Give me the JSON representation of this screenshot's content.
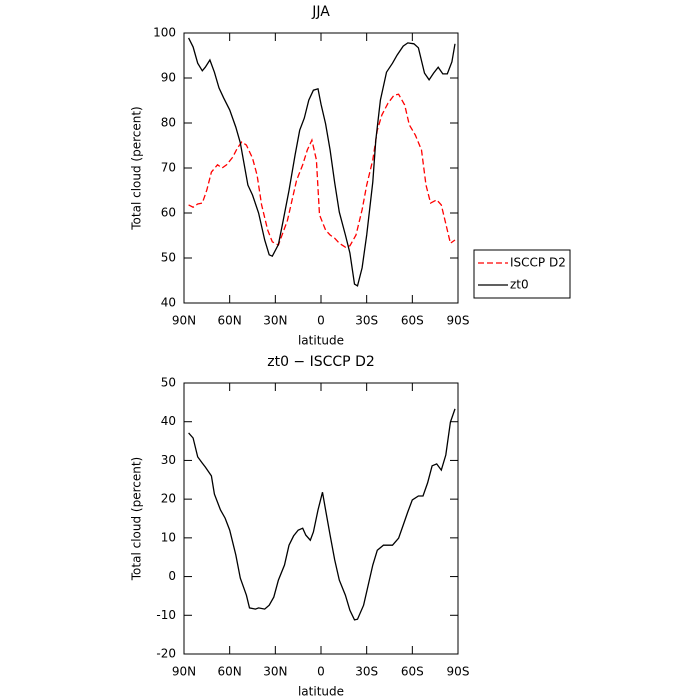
{
  "chart_data": [
    {
      "type": "line",
      "title": "JJA",
      "x_label": "latitude",
      "y_label": "Total cloud (percent)",
      "xlim": [
        90,
        -90
      ],
      "xticks": [
        {
          "value": 90,
          "label": "90N"
        },
        {
          "value": 60,
          "label": "60N"
        },
        {
          "value": 30,
          "label": "30N"
        },
        0,
        {
          "value": -30,
          "label": "30S"
        },
        {
          "value": -60,
          "label": "60S"
        },
        {
          "value": -90,
          "label": "90S"
        }
      ],
      "ylim": [
        40,
        100
      ],
      "yticks": [
        40,
        50,
        60,
        70,
        80,
        90,
        100
      ],
      "legend": "outside right",
      "series": [
        {
          "name": "ISCCP D2",
          "color": "#ff0000",
          "linestyle": "dashed",
          "x": [
            87,
            84,
            81,
            78,
            75,
            72,
            68,
            65,
            62,
            58,
            55,
            52,
            49,
            45,
            42,
            39,
            35,
            32,
            28,
            26,
            22,
            19,
            16,
            12,
            9,
            6,
            3,
            1,
            -3,
            -6,
            -9,
            -12,
            -16,
            -19,
            -23,
            -27,
            -30,
            -34,
            -37,
            -40,
            -44,
            -48,
            -51,
            -55,
            -58,
            -62,
            -66,
            -69,
            -72,
            -76,
            -79,
            -83,
            -85,
            -88
          ],
          "values": [
            61.8,
            61.3,
            62,
            62.2,
            65.1,
            69.1,
            70.7,
            70,
            70.7,
            72.4,
            74.4,
            75.8,
            75.1,
            72.2,
            68.4,
            61.8,
            56.2,
            53.6,
            52.9,
            54.7,
            58.4,
            62.9,
            67.3,
            70.7,
            74,
            76.2,
            71.8,
            59.6,
            56.2,
            55.1,
            54.4,
            53.3,
            52.4,
            52.7,
            55.1,
            60.7,
            66.2,
            71.8,
            78.4,
            81.8,
            84.4,
            86.2,
            86.4,
            84,
            79.6,
            77.3,
            74,
            66.2,
            62.2,
            62.9,
            61.8,
            56.2,
            53.3,
            54
          ]
        },
        {
          "name": "zt0",
          "color": "#000000",
          "linestyle": "solid",
          "x": [
            87,
            84,
            81,
            78,
            76,
            73,
            70,
            67,
            64,
            60,
            56,
            53,
            48,
            45,
            41,
            37,
            34,
            32,
            28,
            25,
            21,
            17,
            14,
            11,
            8,
            5,
            2,
            0,
            -3,
            -6,
            -9,
            -12,
            -16,
            -19,
            -22,
            -24,
            -27,
            -30,
            -34,
            -36,
            -39,
            -43,
            -47,
            -50,
            -54,
            -57,
            -61,
            -64,
            -68,
            -71,
            -74,
            -77,
            -80,
            -83,
            -86,
            -88
          ],
          "values": [
            98.9,
            96.9,
            93.3,
            91.6,
            92.4,
            94,
            91.3,
            87.8,
            85.6,
            82.9,
            79.1,
            75.6,
            66.2,
            64,
            60,
            54,
            50.7,
            50.4,
            53,
            58,
            65,
            72.9,
            78.4,
            81.1,
            85.1,
            87.3,
            87.6,
            84.2,
            79.8,
            74,
            66.7,
            60.2,
            55.1,
            51.1,
            44.2,
            43.8,
            47.8,
            55.1,
            66.9,
            76.2,
            85.1,
            91.3,
            93.3,
            95.1,
            97.1,
            97.8,
            97.6,
            96.7,
            91.1,
            89.6,
            91.1,
            92.4,
            90.9,
            90.9,
            93.6,
            97.6
          ]
        }
      ]
    },
    {
      "type": "line",
      "title": "zt0 − ISCCP D2",
      "x_label": "latitude",
      "y_label": "Total cloud (percent)",
      "xlim": [
        90,
        -90
      ],
      "xticks": [
        {
          "value": 90,
          "label": "90N"
        },
        {
          "value": 60,
          "label": "60N"
        },
        {
          "value": 30,
          "label": "30N"
        },
        0,
        {
          "value": -30,
          "label": "30S"
        },
        {
          "value": -60,
          "label": "60S"
        },
        {
          "value": -90,
          "label": "90S"
        }
      ],
      "ylim": [
        -20,
        50
      ],
      "yticks": [
        -20,
        -10,
        0,
        10,
        20,
        30,
        40,
        50
      ],
      "series": [
        {
          "color": "#000000",
          "linestyle": "solid",
          "x": [
            87,
            84,
            81,
            78,
            76,
            72,
            70,
            66,
            63,
            60,
            56,
            53,
            49,
            47,
            43,
            41,
            37,
            34,
            31,
            28,
            24,
            21,
            18,
            15,
            12,
            10,
            7,
            5,
            2,
            -1,
            -3,
            -6,
            -9,
            -12,
            -16,
            -19,
            -22,
            -24,
            -28,
            -31,
            -34,
            -37,
            -41,
            -44,
            -47,
            -51,
            -54,
            -57,
            -60,
            -64,
            -67,
            -70,
            -73,
            -76,
            -79,
            -82,
            -85,
            -88
          ],
          "values": [
            37.1,
            35.8,
            30.9,
            29.3,
            28.3,
            26,
            21.3,
            17.2,
            15.1,
            12,
            5.6,
            -0.4,
            -4.8,
            -8.1,
            -8.4,
            -8.1,
            -8.4,
            -7.4,
            -5.3,
            -0.9,
            3,
            8.1,
            10.5,
            12,
            12.5,
            10.7,
            9.4,
            11.5,
            17.2,
            21.8,
            17.2,
            10.7,
            4.3,
            -0.9,
            -4.8,
            -8.7,
            -11.2,
            -11,
            -7.4,
            -2.2,
            3,
            6.8,
            8.1,
            8.1,
            8.1,
            9.9,
            13.3,
            16.7,
            19.8,
            20.8,
            20.8,
            24.2,
            28.6,
            29.1,
            27.5,
            31.4,
            39.9,
            43.3
          ]
        }
      ]
    }
  ]
}
